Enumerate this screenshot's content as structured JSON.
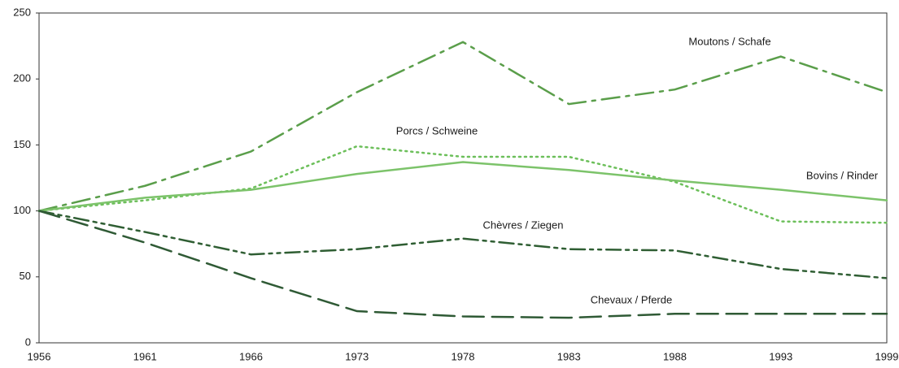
{
  "chart_data": {
    "type": "line",
    "categories": [
      "1956",
      "1961",
      "1966",
      "1973",
      "1978",
      "1983",
      "1988",
      "1993",
      "1999"
    ],
    "series": [
      {
        "name": "Moutons / Schafe",
        "color": "#5a9e4a",
        "dash": "dashdot",
        "values": [
          100,
          119,
          145,
          190,
          228,
          181,
          192,
          217,
          190
        ]
      },
      {
        "name": "Porcs / Schweine",
        "color": "#6cbf5a",
        "dash": "dotted",
        "values": [
          100,
          108,
          117,
          149,
          141,
          141,
          122,
          92,
          91
        ]
      },
      {
        "name": "Bovins / Rinder",
        "color": "#7cc36a",
        "dash": "solid",
        "values": [
          100,
          110,
          116,
          128,
          137,
          131,
          123,
          116,
          108
        ]
      },
      {
        "name": "Chèvres / Ziegen",
        "color": "#2f5e33",
        "dash": "dashdotdot",
        "values": [
          100,
          84,
          67,
          71,
          79,
          71,
          70,
          56,
          49
        ]
      },
      {
        "name": "Chevaux / Pferde",
        "color": "#2f5a35",
        "dash": "longdash",
        "values": [
          100,
          76,
          49,
          24,
          20,
          19,
          22,
          22,
          22
        ]
      }
    ],
    "ylim": [
      0,
      250
    ],
    "yticks": [
      0,
      50,
      100,
      150,
      200,
      250
    ],
    "grid": false
  }
}
